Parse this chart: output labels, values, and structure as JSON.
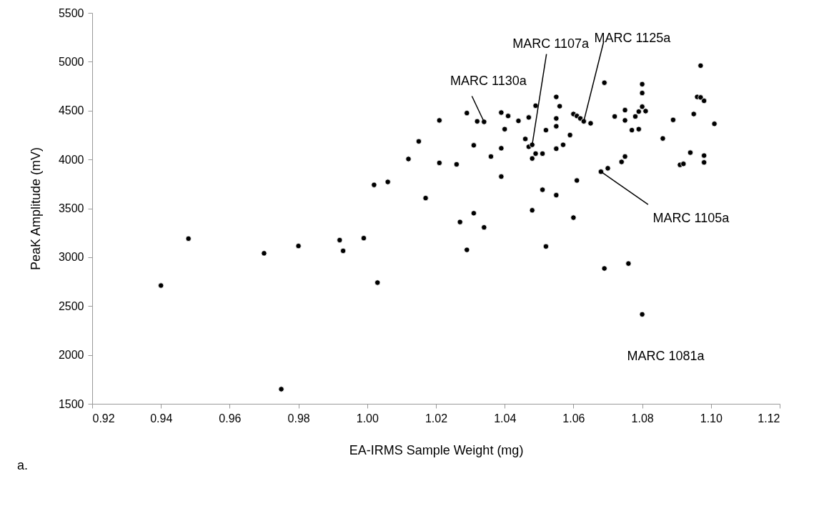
{
  "chart_data": {
    "type": "scatter",
    "xlabel": "EA-IRMS Sample Weight (mg)",
    "ylabel": "PeaK Amplitude (mV)",
    "marker": "circle",
    "grid": false,
    "xlim": [
      0.92,
      1.12
    ],
    "ylim": [
      1500,
      5500
    ],
    "xticks": [
      0.92,
      0.94,
      0.96,
      0.98,
      {
        "value": 1.0,
        "label": "1.00"
      },
      1.02,
      1.04,
      1.06,
      1.08,
      {
        "value": 1.1,
        "label": "1.10"
      },
      1.12
    ],
    "yticks": [
      1500,
      2000,
      2500,
      3000,
      3500,
      4000,
      4500,
      5000,
      5500
    ],
    "series": [
      {
        "color": "#000000",
        "x": [
          0.94,
          0.948,
          0.97,
          0.975,
          0.98,
          0.992,
          0.993,
          0.999,
          1.003,
          1.002,
          1.006,
          1.012,
          1.015,
          1.017,
          1.021,
          1.021,
          1.026,
          1.027,
          1.029,
          1.029,
          1.031,
          1.031,
          1.032,
          1.034,
          1.034,
          1.036,
          1.039,
          1.039,
          1.039,
          1.04,
          1.041,
          1.044,
          1.046,
          1.047,
          1.047,
          1.048,
          1.048,
          1.048,
          1.049,
          1.049,
          1.051,
          1.051,
          1.052,
          1.052,
          1.055,
          1.055,
          1.055,
          1.055,
          1.055,
          1.056,
          1.057,
          1.059,
          1.06,
          1.06,
          1.061,
          1.061,
          1.062,
          1.063,
          1.065,
          1.068,
          1.069,
          1.069,
          1.07,
          1.072,
          1.074,
          1.075,
          1.075,
          1.075,
          1.076,
          1.077,
          1.078,
          1.079,
          1.079,
          1.08,
          1.08,
          1.08,
          1.08,
          1.081,
          1.086,
          1.089,
          1.091,
          1.092,
          1.094,
          1.095,
          1.096,
          1.097,
          1.097,
          1.098,
          1.098,
          1.098,
          1.101
        ],
        "values": [
          2710,
          3190,
          3040,
          1650,
          3115,
          3175,
          3065,
          3195,
          2740,
          3740,
          3770,
          4005,
          4185,
          3605,
          4400,
          3965,
          3950,
          3360,
          4475,
          3075,
          4145,
          3450,
          4390,
          4385,
          3305,
          4030,
          4480,
          4115,
          3825,
          4310,
          4445,
          4395,
          4210,
          4430,
          4130,
          4150,
          4010,
          3480,
          4550,
          4060,
          4060,
          3690,
          4300,
          3110,
          4640,
          4420,
          4340,
          4110,
          3635,
          4545,
          4150,
          4250,
          4465,
          3405,
          4445,
          3785,
          4420,
          4390,
          4370,
          3875,
          4785,
          2885,
          3910,
          4440,
          3975,
          4505,
          4400,
          4030,
          2935,
          4300,
          4440,
          4490,
          4310,
          4770,
          4680,
          4540,
          2415,
          4495,
          4215,
          4405,
          3945,
          3955,
          4070,
          4465,
          4640,
          4960,
          4635,
          4600,
          4040,
          3970,
          4365
        ]
      }
    ],
    "annotations": [
      {
        "text": "MARC 1130a",
        "x": 1.034,
        "y": 4385
      },
      {
        "text": "MARC 1107a",
        "x": 1.048,
        "y": 4150
      },
      {
        "text": "MARC 1125a",
        "x": 1.063,
        "y": 4390
      },
      {
        "text": "MARC 1105a",
        "x": 1.068,
        "y": 3875
      },
      {
        "text": "MARC 1081a",
        "x": 1.08,
        "y": 2415
      },
      "a."
    ]
  }
}
